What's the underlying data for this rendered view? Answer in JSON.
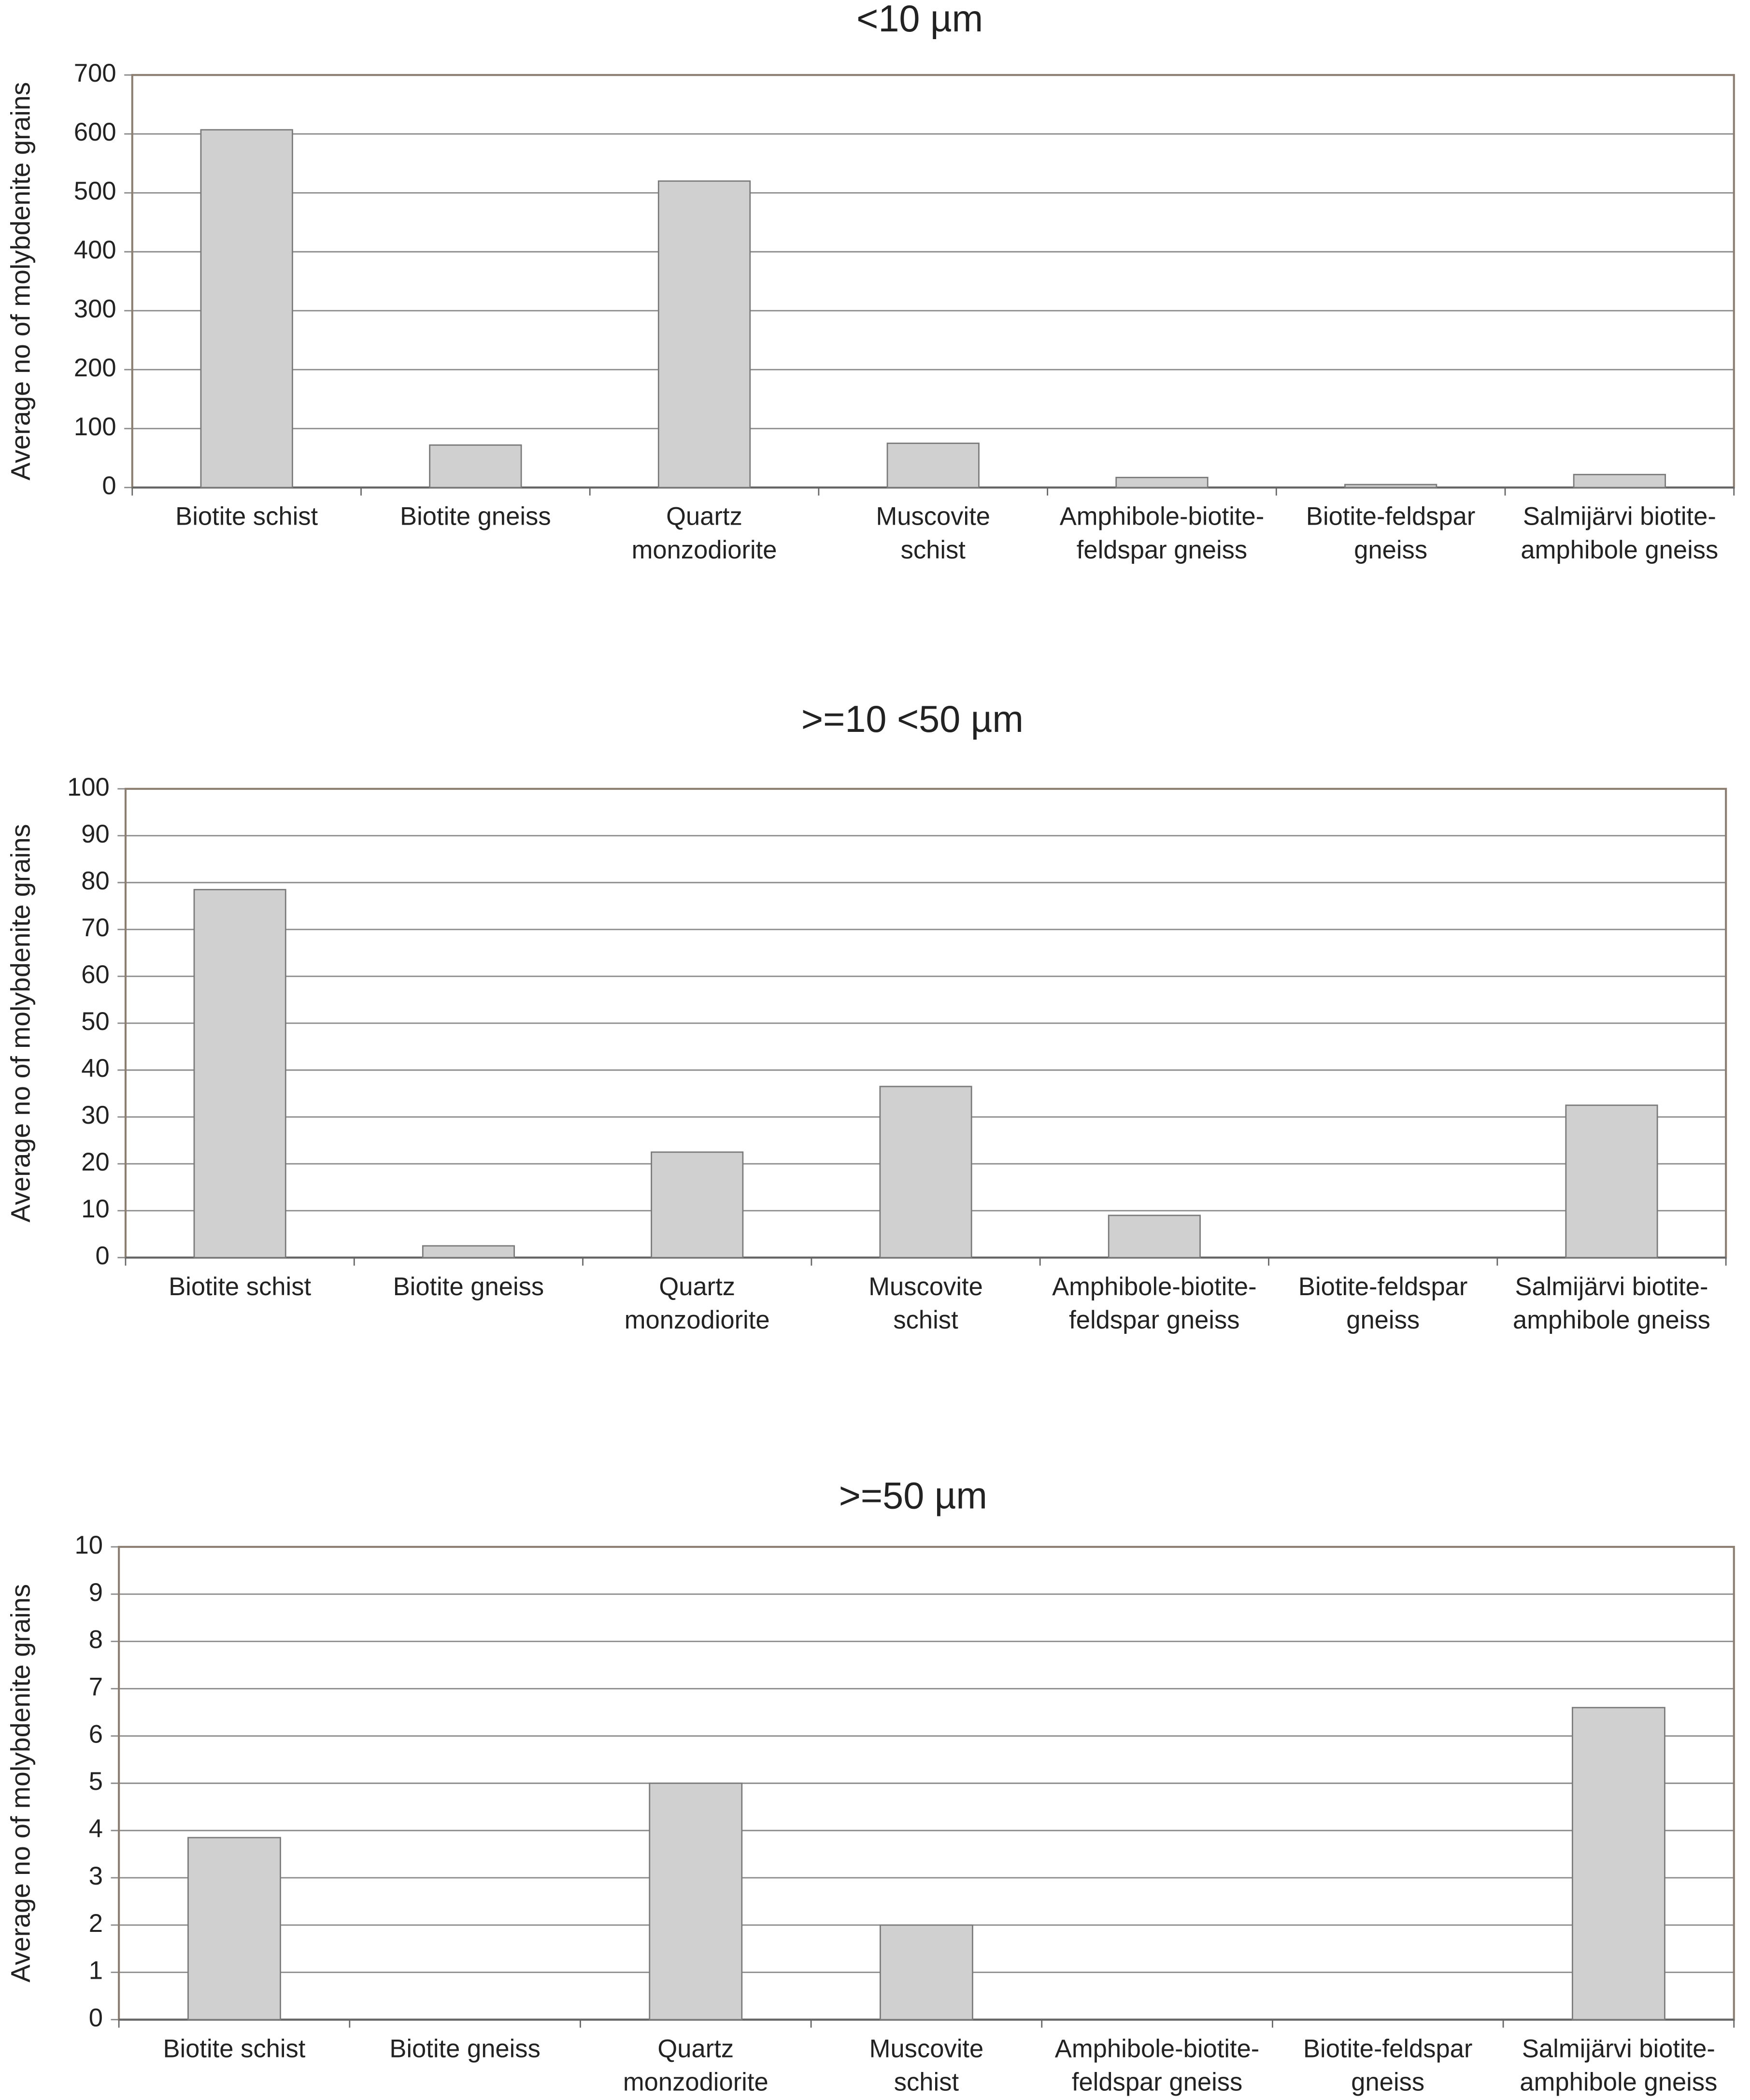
{
  "chart_data": [
    {
      "type": "bar",
      "title": "<10 µm",
      "y_label": "Average no of molybdenite grains",
      "categories": [
        "Biotite schist",
        "Biotite gneiss",
        "Quartz\nmonzodiorite",
        "Muscovite\nschist",
        "Amphibole-biotite-\nfeldspar gneiss",
        "Biotite-feldspar\ngneiss",
        "Salmijärvi biotite-\namphibole gneiss"
      ],
      "values": [
        607,
        72,
        520,
        75,
        17,
        5,
        22
      ],
      "color": "#d0d0d0",
      "ylim": [
        0,
        700
      ],
      "yticks": [
        0,
        100,
        200,
        300,
        400,
        500,
        600,
        700
      ],
      "grid": true
    },
    {
      "type": "bar",
      "title": ">=10 <50 µm",
      "y_label": "Average no of molybdenite grains",
      "categories": [
        "Biotite schist",
        "Biotite gneiss",
        "Quartz\nmonzodiorite",
        "Muscovite\nschist",
        "Amphibole-biotite-\nfeldspar gneiss",
        "Biotite-feldspar\ngneiss",
        "Salmijärvi biotite-\namphibole gneiss"
      ],
      "values": [
        78.5,
        2.5,
        22.5,
        36.5,
        9,
        0,
        32.5
      ],
      "color": "#d0d0d0",
      "ylim": [
        0,
        100
      ],
      "yticks": [
        0,
        10,
        20,
        30,
        40,
        50,
        60,
        70,
        80,
        90,
        100
      ],
      "grid": true
    },
    {
      "type": "bar",
      "title": ">=50 µm",
      "y_label": "Average no of molybdenite grains",
      "categories": [
        "Biotite schist",
        "Biotite gneiss",
        "Quartz\nmonzodiorite",
        "Muscovite\nschist",
        "Amphibole-biotite-\nfeldspar gneiss",
        "Biotite-feldspar\ngneiss",
        "Salmijärvi biotite-\namphibole gneiss"
      ],
      "values": [
        3.85,
        0,
        5,
        2,
        0,
        0,
        6.6
      ],
      "color": "#d0d0d0",
      "ylim": [
        0,
        10
      ],
      "yticks": [
        0,
        1,
        2,
        3,
        4,
        5,
        6,
        7,
        8,
        9,
        10
      ],
      "grid": true
    }
  ]
}
